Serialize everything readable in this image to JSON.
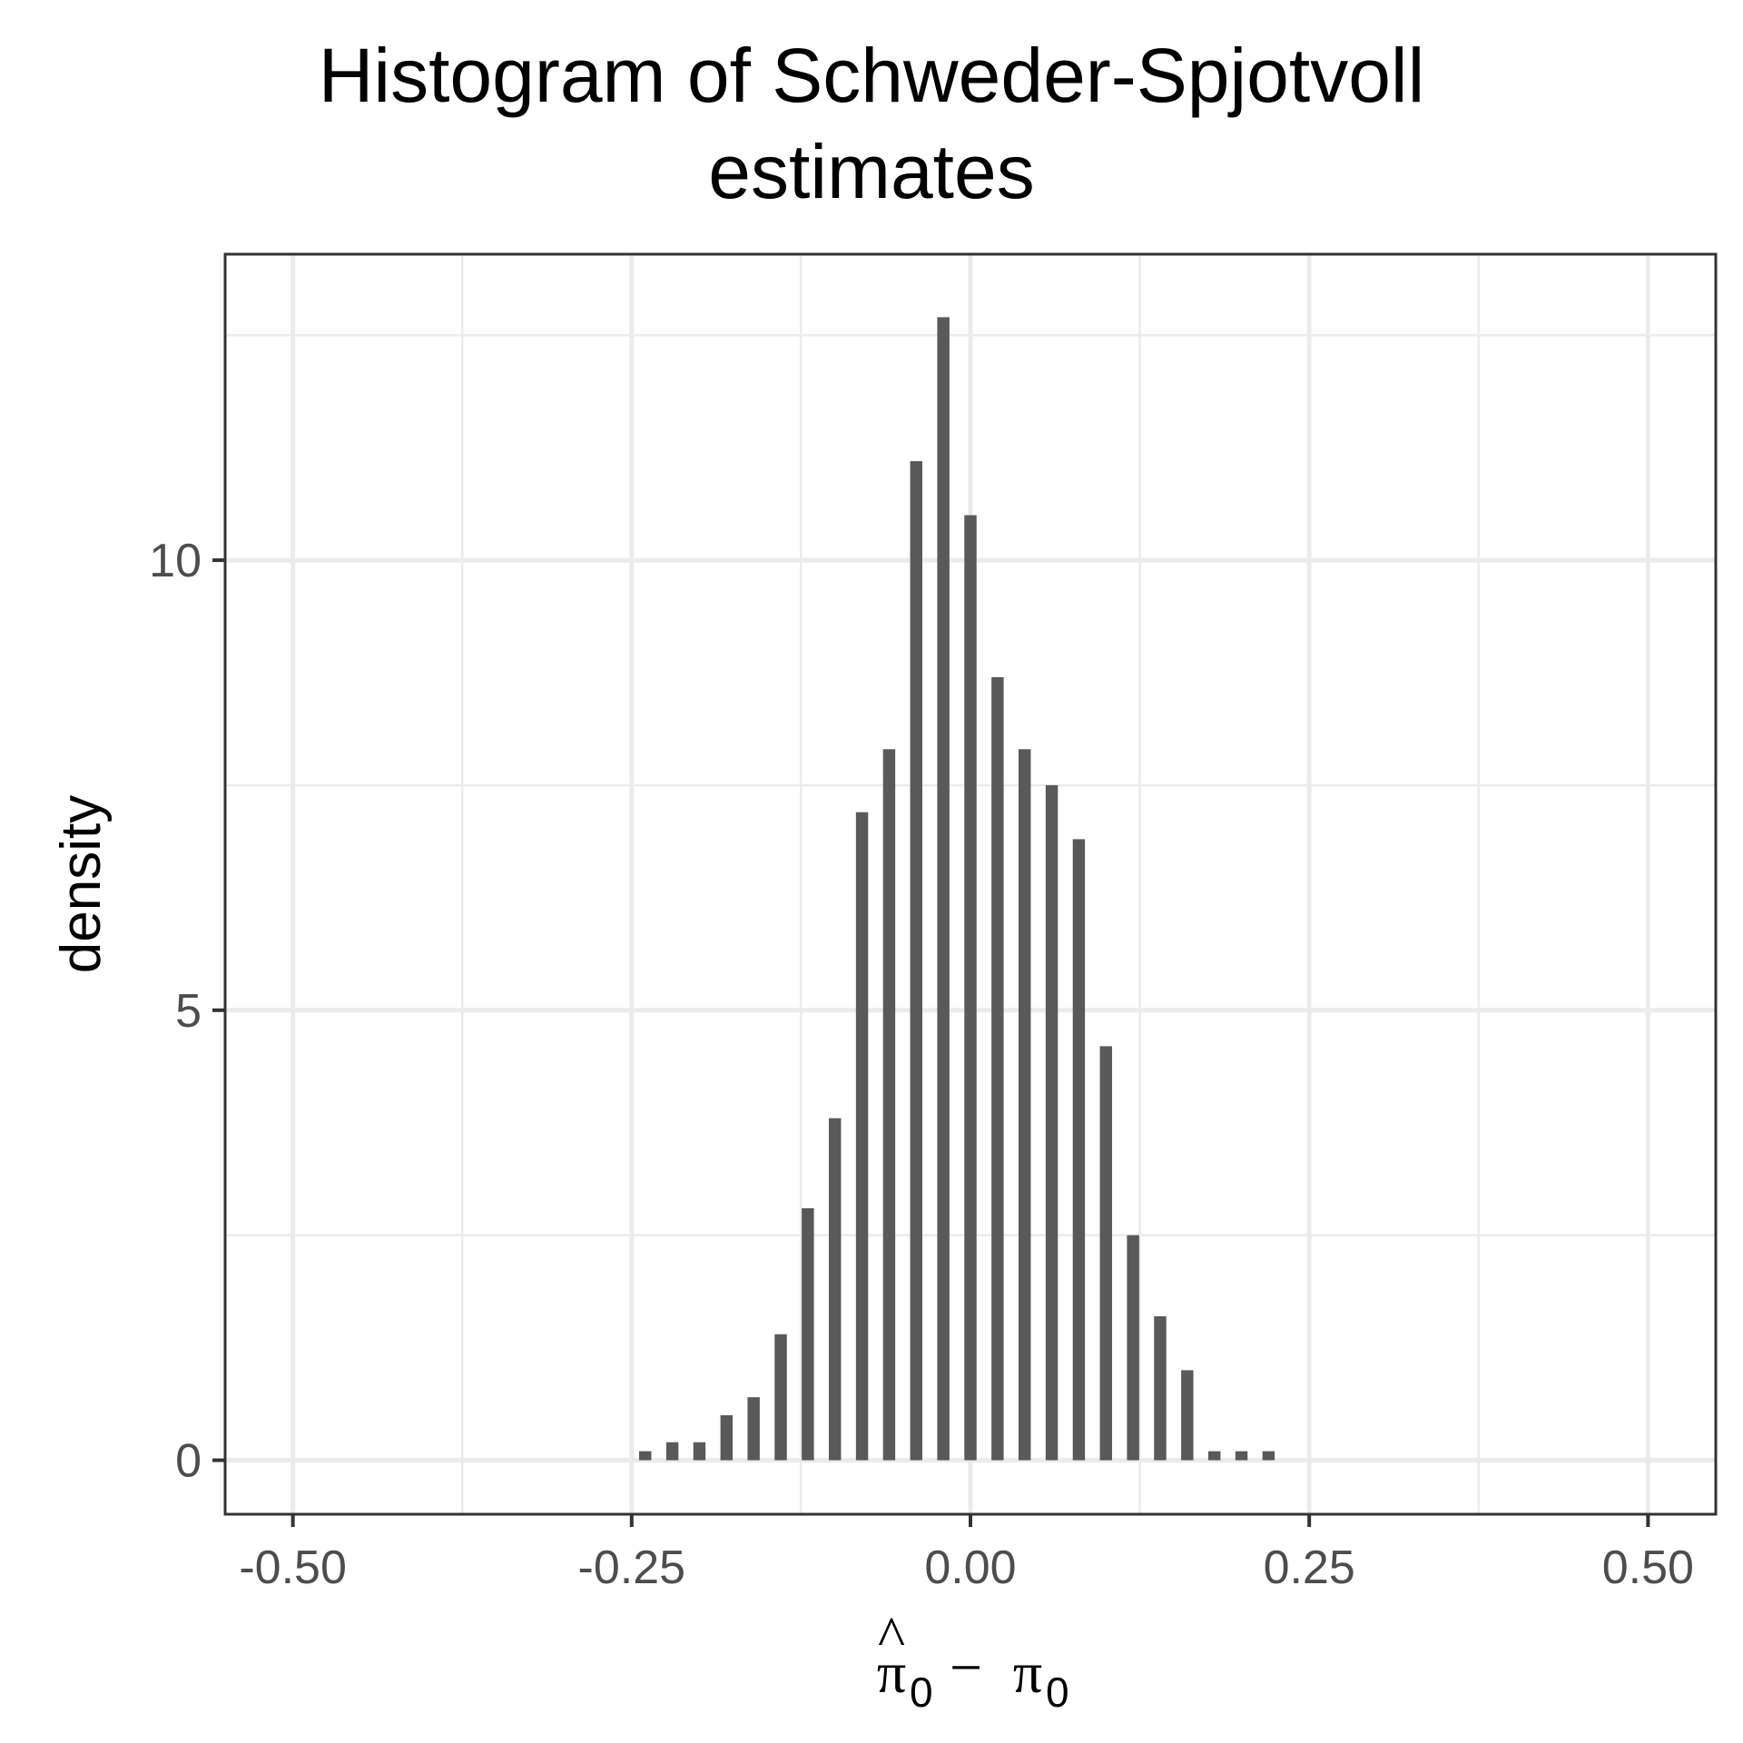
{
  "chart_data": {
    "type": "bar",
    "title": [
      "Histogram of Schweder-Spjotvoll",
      "estimates"
    ],
    "xlabel": {
      "hat_symbol": "^",
      "term1": "π",
      "subscript1": "0",
      "operator": "−",
      "term2": "π",
      "subscript2": "0"
    },
    "ylabel": "density",
    "xlim": [
      -0.55,
      0.55
    ],
    "ylim": [
      -0.6,
      13.4
    ],
    "bar_width": 0.009,
    "grid": true,
    "x_major_ticks": [
      -0.5,
      -0.25,
      0,
      0.25,
      0.5
    ],
    "x_minor_ticks": [
      -0.375,
      -0.125,
      0.125,
      0.375
    ],
    "y_major_ticks": [
      0,
      5,
      10
    ],
    "y_minor_ticks": [
      2.5,
      7.5,
      12.5
    ],
    "x_tick_labels": [
      "-0.50",
      "-0.25",
      "0.00",
      "0.25",
      "0.50"
    ],
    "y_tick_labels": [
      "0",
      "5",
      "10"
    ],
    "x": [
      -0.24,
      -0.22,
      -0.2,
      -0.18,
      -0.16,
      -0.14,
      -0.12,
      -0.1,
      -0.08,
      -0.06,
      -0.04,
      -0.02,
      0.0,
      0.02,
      0.04,
      0.06,
      0.08,
      0.1,
      0.12,
      0.14,
      0.16,
      0.18,
      0.2,
      0.22
    ],
    "values": [
      0.1,
      0.2,
      0.2,
      0.5,
      0.7,
      1.4,
      2.8,
      3.8,
      7.2,
      7.9,
      11.1,
      12.7,
      10.5,
      8.7,
      7.9,
      7.5,
      6.9,
      4.6,
      2.5,
      1.6,
      1.0,
      0.1,
      0.1,
      0.1
    ],
    "colors": {
      "bar": "#595959",
      "grid": "#ebebeb",
      "panel_border": "#333333",
      "tick_text": "#4d4d4d"
    }
  }
}
